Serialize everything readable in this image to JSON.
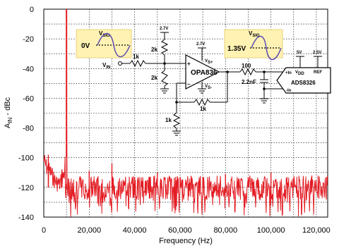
{
  "chart_data": {
    "type": "line",
    "title": "",
    "xlabel": "Frequency (Hz)",
    "ylabel": "A",
    "ylabel_sub": "IN",
    "ylabel_suffix": " - dBc",
    "xlim": [
      0,
      125000
    ],
    "ylim": [
      -140,
      0
    ],
    "xticks": [
      0,
      20000,
      40000,
      60000,
      80000,
      100000,
      120000
    ],
    "xtick_labels": [
      "0",
      "20,000",
      "40,000",
      "60,000",
      "80,000",
      "100,000",
      "120,000"
    ],
    "yticks": [
      0,
      -20,
      -40,
      -60,
      -80,
      -100,
      -120,
      -140
    ],
    "ytick_labels": [
      "0",
      "-20",
      "-40",
      "-60",
      "-80",
      "-100",
      "-120",
      "-140"
    ],
    "grid": true,
    "series": [
      {
        "color": "#e31d24",
        "fundamental": {
          "x": 10000,
          "y": 0
        },
        "harmonics": [
          {
            "x": 2000,
            "y": -98
          },
          {
            "x": 8000,
            "y": -108
          },
          {
            "x": 20000,
            "y": -109
          },
          {
            "x": 30000,
            "y": -104
          },
          {
            "x": 40000,
            "y": -113
          },
          {
            "x": 50000,
            "y": -110
          },
          {
            "x": 60000,
            "y": -113
          },
          {
            "x": 70000,
            "y": -113
          },
          {
            "x": 80000,
            "y": -111
          },
          {
            "x": 90000,
            "y": -113
          },
          {
            "x": 100000,
            "y": -110
          },
          {
            "x": 110000,
            "y": -114
          },
          {
            "x": 118000,
            "y": -112
          }
        ],
        "skirt": [
          {
            "x": 0,
            "y": -95
          },
          {
            "x": 1000,
            "y": -100
          },
          {
            "x": 3000,
            "y": -104
          },
          {
            "x": 5000,
            "y": -110
          },
          {
            "x": 7000,
            "y": -112
          },
          {
            "x": 9000,
            "y": -105
          },
          {
            "x": 9500,
            "y": -95
          }
        ],
        "noise_floor": {
          "mean": -120,
          "spread": 8,
          "min": -140
        }
      }
    ]
  },
  "schematic": {
    "vsig_left": {
      "label": "V",
      "label_sub": "SIG",
      "offset": "0V"
    },
    "vsig_right": {
      "label": "V",
      "label_sub": "SIG",
      "offset": "1.35V"
    },
    "vin": {
      "label": "V",
      "label_sub": "IN"
    },
    "r_in": "1k",
    "r_top": "2k",
    "r_bot": "2k",
    "supply_divider": "2.7V",
    "supply_amp": "2.7V",
    "amp_name": "OPA836",
    "vs_plus": {
      "label": "V",
      "label_sub": "S+"
    },
    "vs_minus": {
      "label": "V",
      "label_sub": "S-"
    },
    "plus_sign": "+",
    "minus_sign": "–",
    "r_feedback": "1k",
    "r_gain": "1k",
    "r_filter": "100",
    "c_filter": "2.2nF",
    "adc_name": "ADS8326",
    "adc_vdd": {
      "label": "V",
      "label_sub": "DD"
    },
    "adc_ref": "REF",
    "adc_inp": {
      "label": "+In"
    },
    "adc_inm": {
      "label": "-In"
    },
    "supply_5v": "5V",
    "supply_2v5": "2.5V"
  }
}
